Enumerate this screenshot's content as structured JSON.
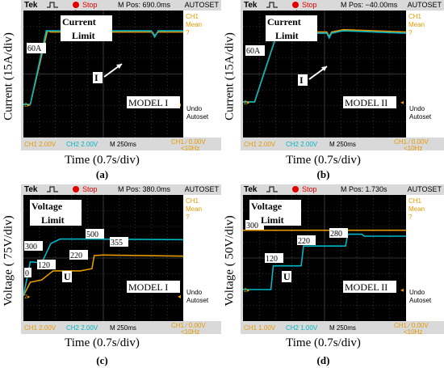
{
  "panels": [
    {
      "caption": "(a)",
      "scope": {
        "brand": "Tek",
        "status": "Stop",
        "mpos": "M Pos: 690.0ms",
        "autoset": "AUTOSET",
        "meas": [
          "CH1",
          "Mean",
          "?"
        ],
        "undo": [
          "Undo",
          "Autoset"
        ],
        "ch1_scale": "CH1  2.00V",
        "ch2_scale": "CH2  2.00V",
        "timebase": "M 250ms",
        "trigger": [
          "CH1 ∕  0.00V",
          "<10Hz"
        ]
      },
      "ylabel": "Current (15A/div)",
      "xlabel": "Time (0.7s/div)",
      "overlay": {
        "title": [
          "Current",
          "Limit"
        ],
        "level": "60A",
        "marker": "I",
        "model": "MODEL I"
      }
    },
    {
      "caption": "(b)",
      "scope": {
        "brand": "Tek",
        "status": "Stop",
        "mpos": "M Pos: −40.00ms",
        "autoset": "AUTOSET",
        "meas": [
          "CH1",
          "Mean",
          "?"
        ],
        "undo": [
          "Undo",
          "Autoset"
        ],
        "ch1_scale": "CH1  2.00V",
        "ch2_scale": "CH2  2.00V",
        "timebase": "M 250ms",
        "trigger": [
          "CH1 ∕  0.00V",
          "<10Hz"
        ]
      },
      "ylabel": "Current (15A/div)",
      "xlabel": "Time (0.7s/div)",
      "overlay": {
        "title": [
          "Current",
          "Limit"
        ],
        "level": "60A",
        "marker": "I",
        "model": "MODEL II"
      }
    },
    {
      "caption": "(c)",
      "scope": {
        "brand": "Tek",
        "status": "Stop",
        "mpos": "M Pos: 380.0ms",
        "autoset": "AUTOSET",
        "meas": [
          "CH1",
          "Mean",
          "?"
        ],
        "undo": [
          "Undo",
          "Autoset"
        ],
        "ch1_scale": "CH1  2.00V",
        "ch2_scale": "CH2  2.00V",
        "timebase": "M 250ms",
        "trigger": [
          "CH1 ∕  0.00V",
          "<10Hz"
        ]
      },
      "ylabel": "Voltage ( 75V/div)",
      "xlabel": "Time (0.7s/div)",
      "overlay": {
        "title": [
          "Voltage",
          "Limit"
        ],
        "marker": "U",
        "model": "MODEL I",
        "values": [
          "300",
          "500",
          "120",
          "220",
          "355",
          "0"
        ]
      }
    },
    {
      "caption": "(d)",
      "scope": {
        "brand": "Tek",
        "status": "Stop",
        "mpos": "M Pos: 1.730s",
        "autoset": "AUTOSET",
        "meas": [
          "CH1",
          "Mean",
          "?"
        ],
        "undo": [
          "Undo",
          "Autoset"
        ],
        "ch1_scale": "CH1  1.00V",
        "ch2_scale": "CH2  1.00V",
        "timebase": "M 250ms",
        "trigger": [
          "CH1 ∕  0.00V",
          "<10Hz"
        ]
      },
      "ylabel": "Voltage ( 50V/div)",
      "xlabel": "Time (0.7s/div)",
      "overlay": {
        "title": [
          "Voltage",
          "Limit"
        ],
        "marker": "U",
        "model": "MODEL II",
        "values": [
          "300",
          "120",
          "220",
          "280"
        ]
      }
    }
  ],
  "colors": {
    "ch1": "#e69a00",
    "ch2": "#00b7c7",
    "grid": "#5a5a5a",
    "screen": "#000000",
    "bezel": "#d9d9d9"
  },
  "chart_data": [
    {
      "type": "line",
      "ylabel": "Current (15A/div)",
      "xlabel": "Time (0.7s/div)",
      "xlim": [
        0,
        7
      ],
      "ylim": [
        0,
        120
      ],
      "series": [
        {
          "x": [
            0,
            0.3,
            1.05,
            1.2,
            5.65,
            5.75,
            5.9,
            7
          ],
          "y": [
            0,
            0,
            60,
            59,
            59,
            56,
            59,
            59
          ]
        },
        {
          "x": [
            0,
            0.3,
            1.0,
            1.15,
            5.6,
            5.75,
            5.9,
            7
          ],
          "y": [
            0,
            0,
            60,
            60,
            60,
            55,
            60,
            60
          ]
        }
      ]
    },
    {
      "type": "line",
      "ylabel": "Current (15A/div)",
      "xlabel": "Time (0.7s/div)",
      "xlim": [
        0,
        7
      ],
      "ylim": [
        0,
        120
      ],
      "series": [
        {
          "x": [
            0,
            0.5,
            1.5,
            2.0,
            3.6,
            3.7,
            3.8,
            4.3,
            7
          ],
          "y": [
            0,
            0,
            60,
            59,
            59,
            55,
            59,
            61,
            59
          ]
        },
        {
          "x": [
            0,
            0.5,
            1.5,
            2.0,
            3.6,
            3.7,
            3.8,
            4.3,
            7
          ],
          "y": [
            0,
            0,
            60,
            58,
            58,
            54,
            58,
            60,
            58
          ]
        }
      ]
    },
    {
      "type": "line",
      "ylabel": "Voltage ( 75V/div)",
      "xlabel": "Time (0.7s/div)",
      "xlim": [
        0,
        7
      ],
      "ylim": [
        0,
        600
      ],
      "series": [
        {
          "x": [
            0,
            0.3,
            0.8,
            1.3,
            2.5,
            3.0,
            3.1,
            3.5,
            7
          ],
          "y": [
            0,
            120,
            140,
            220,
            220,
            240,
            355,
            360,
            350
          ]
        },
        {
          "x": [
            0,
            0.3,
            0.8,
            1.2,
            1.6,
            2.0,
            3.0,
            7
          ],
          "y": [
            0,
            300,
            290,
            460,
            500,
            500,
            500,
            495
          ]
        }
      ]
    },
    {
      "type": "line",
      "ylabel": "Voltage ( 50V/div)",
      "xlabel": "Time (0.7s/div)",
      "xlim": [
        0,
        7
      ],
      "ylim": [
        0,
        400
      ],
      "series": [
        {
          "x": [
            0,
            7
          ],
          "y": [
            300,
            300
          ]
        },
        {
          "x": [
            0,
            1.2,
            1.3,
            2.5,
            2.6,
            4.4,
            4.5,
            5.1,
            5.2,
            7
          ],
          "y": [
            0,
            0,
            120,
            120,
            220,
            220,
            280,
            280,
            270,
            270
          ]
        }
      ]
    }
  ]
}
